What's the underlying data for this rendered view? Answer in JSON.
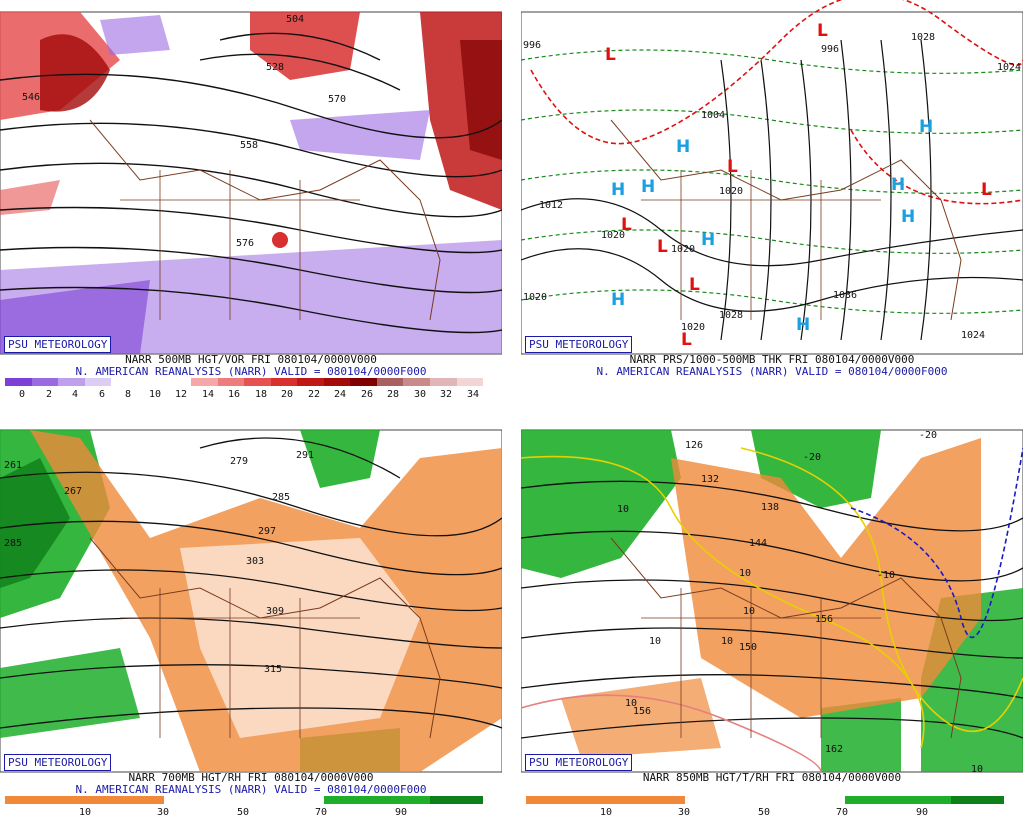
{
  "panels": [
    {
      "id": "500mb",
      "badge": "PSU METEOROLOGY",
      "caption_line1": "NARR 500MB HGT/VOR FRI 080104/0000V000",
      "caption_line2": "N. AMERICAN REANALYSIS (NARR) VALID = 080104/0000F000",
      "scale_ticks": [
        "0",
        "2",
        "4",
        "6",
        "8",
        "10",
        "12",
        "14",
        "16",
        "18",
        "20",
        "22",
        "24",
        "26",
        "28",
        "30",
        "32",
        "34"
      ],
      "scale_colors": [
        "#7d3fd6",
        "#9b6ae2",
        "#bfa0ec",
        "#dccdf4",
        "#ffffff",
        "#ffffff",
        "#ffffff",
        "#f6a8a8",
        "#ef7c7c",
        "#e65252",
        "#d83030",
        "#c01818",
        "#a30a0a",
        "#800000",
        "#a86060",
        "#c98a8a",
        "#e2b6b6",
        "#f2d6d6"
      ],
      "contour_labels": [
        "504",
        "528",
        "570",
        "558",
        "576",
        "546"
      ]
    },
    {
      "id": "sfc",
      "badge": "PSU METEOROLOGY",
      "caption_line1": "NARR PRS/1000-500MB THK FRI 080104/0000V000",
      "caption_line2": "N. AMERICAN REANALYSIS (NARR) VALID = 080104/0000F000",
      "contour_labels": [
        "996",
        "1028",
        "1012",
        "1020",
        "1036",
        "1028",
        "1020",
        "1020",
        "996",
        "1004",
        "1020",
        "1020",
        "1024",
        "1024"
      ],
      "high_symbol": "H",
      "low_symbol": "L"
    },
    {
      "id": "700mb",
      "badge": "PSU METEOROLOGY",
      "caption_line1": "NARR 700MB HGT/RH FRI 080104/0000V000",
      "caption_line2": "N. AMERICAN REANALYSIS (NARR) VALID = 080104/0000F000",
      "scale_ticks": [
        "10",
        "30",
        "50",
        "70",
        "90"
      ],
      "contour_labels": [
        "279",
        "291",
        "267",
        "285",
        "297",
        "303",
        "309",
        "315",
        "261",
        "285"
      ]
    },
    {
      "id": "850mb",
      "badge": "PSU METEOROLOGY",
      "caption_line1": "NARR 850MB HGT/T/RH FRI 080104/0000V000",
      "scale_ticks": [
        "10",
        "30",
        "50",
        "70",
        "90"
      ],
      "contour_labels": [
        "126",
        "132",
        "138",
        "144",
        "150",
        "156",
        "156",
        "162"
      ],
      "temp_labels": [
        "-20",
        "-20",
        "-10",
        "10",
        "10",
        "10",
        "10",
        "10",
        "10",
        "10"
      ]
    }
  ],
  "colors": {
    "hgt_contour": "#111111",
    "border": "#7a3b1f",
    "vort_purple": "#7d3fd6",
    "vort_red": "#d02020",
    "rh_orange": "#f08a3a",
    "rh_green": "#1fae2a",
    "high": "#1aa0e0",
    "low": "#e01010",
    "thick_green": "#1a8a1a",
    "thick_red": "#e01010"
  }
}
